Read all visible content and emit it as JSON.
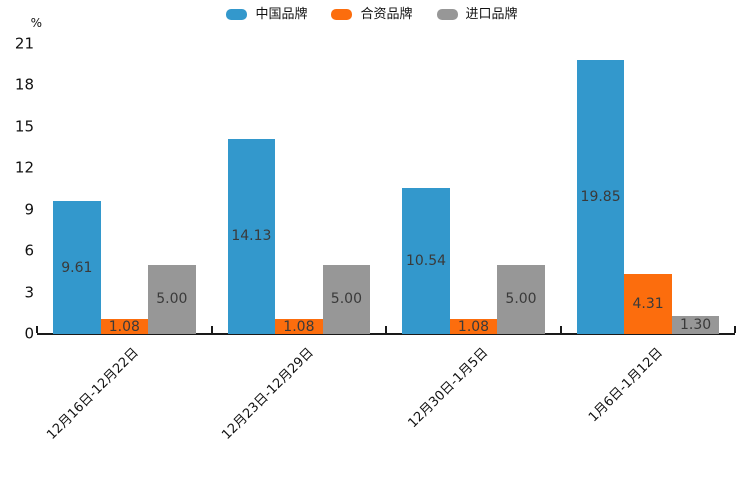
{
  "chart_data": {
    "type": "bar",
    "title": "",
    "unit_label": "%",
    "categories": [
      "12月16日-12月22日",
      "12月23日-12月29日",
      "12月30日-1月5日",
      "1月6日-1月12日"
    ],
    "series": [
      {
        "name": "中国品牌",
        "color": "#3398CC",
        "values": [
          9.61,
          14.13,
          10.54,
          19.85
        ]
      },
      {
        "name": "合资品牌",
        "color": "#FC6D0D",
        "values": [
          1.08,
          1.08,
          1.08,
          4.31
        ]
      },
      {
        "name": "进口品牌",
        "color": "#979797",
        "values": [
          5.0,
          5.0,
          5.0,
          1.3
        ]
      }
    ],
    "ylim": [
      0,
      21
    ],
    "yticks": [
      0,
      3,
      6,
      9,
      12,
      15,
      18,
      21
    ],
    "value_label_decimals": 2,
    "legend_position": "top-center",
    "grid": false,
    "colors": {
      "axis": "#1a1a1a",
      "value_label": "#3a3a3a",
      "tick_label": "#111111"
    }
  }
}
